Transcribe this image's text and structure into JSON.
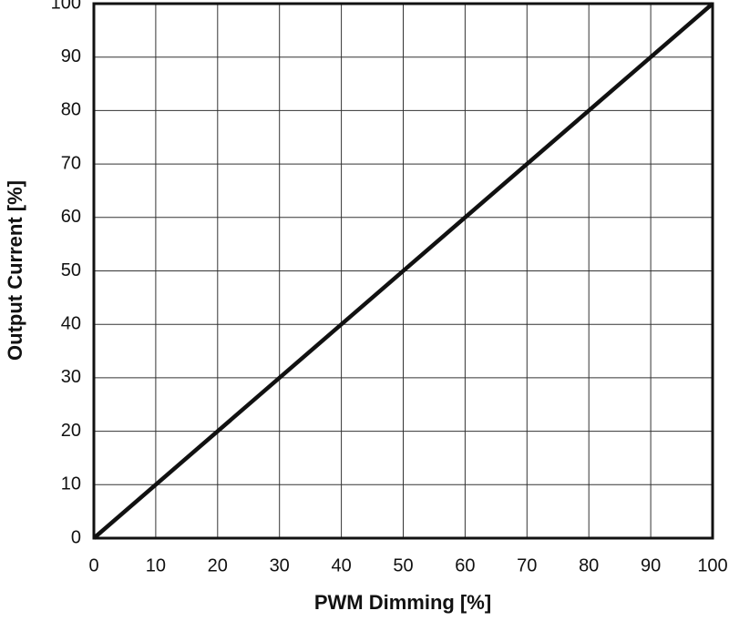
{
  "chart_data": {
    "type": "line",
    "x_label": "PWM Dimming [%]",
    "y_label": "Output Current [%]",
    "x": [
      0,
      100
    ],
    "series": [
      {
        "color": "#111111",
        "values": [
          0,
          100
        ]
      }
    ],
    "xlim": [
      0,
      100
    ],
    "xticks": [
      0,
      10,
      20,
      30,
      40,
      50,
      60,
      70,
      80,
      90,
      100
    ],
    "ylim": [
      0,
      100
    ],
    "yticks": [
      0,
      10,
      20,
      30,
      40,
      50,
      60,
      70,
      80,
      90,
      100
    ],
    "grid": true
  }
}
